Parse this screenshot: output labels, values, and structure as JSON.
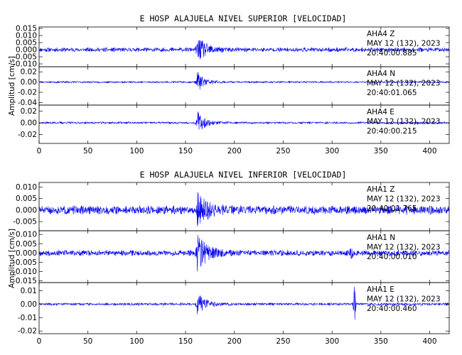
{
  "chart_data": [
    {
      "type": "line",
      "title": "E HOSP ALAJUELA NIVEL SUPERIOR [VELOCIDAD]",
      "ylabel": "Amplitud [cm/s]",
      "xlim": [
        0,
        420
      ],
      "xticks": [
        0,
        50,
        100,
        150,
        200,
        250,
        300,
        350,
        400
      ],
      "event_onset_x": 162,
      "panels": [
        {
          "channel": "AHA4   Z",
          "date": "MAY 12 (132), 2023",
          "time": "20:40:00.885",
          "ylim": [
            -0.012,
            0.016
          ],
          "yticks": [
            0.015,
            0.01,
            0.005,
            0.0,
            -0.005,
            -0.01
          ],
          "ytick_labels": [
            "0.015",
            "0.010",
            "0.005",
            "0.000",
            "-0.005",
            "-0.010"
          ],
          "noise": 0.0012,
          "peak": 0.009,
          "decay": 9,
          "spike_x": null,
          "spike_amp": 0,
          "seed": 11
        },
        {
          "channel": "AHA4   N",
          "date": "MAY 12 (132), 2023",
          "time": "20:40:01.065",
          "ylim": [
            -0.045,
            0.03
          ],
          "yticks": [
            0.02,
            0.0,
            -0.02,
            -0.04
          ],
          "ytick_labels": [
            "0.02",
            "0.00",
            "-0.02",
            "-0.04"
          ],
          "noise": 0.0015,
          "peak": 0.021,
          "decay": 7,
          "spike_x": null,
          "spike_amp": 0,
          "seed": 23
        },
        {
          "channel": "AHA4   E",
          "date": "MAY 12 (132), 2023",
          "time": "20:40:00.215",
          "ylim": [
            -0.035,
            0.03
          ],
          "yticks": [
            0.02,
            0.0,
            -0.02
          ],
          "ytick_labels": [
            "0.02",
            "0.00",
            "-0.02"
          ],
          "noise": 0.0015,
          "peak": 0.02,
          "decay": 7,
          "spike_x": null,
          "spike_amp": 0,
          "seed": 37
        }
      ]
    },
    {
      "type": "line",
      "title": "E HOSP ALAJUELA NIVEL INFERIOR [VELOCIDAD]",
      "ylabel": "Amplitud [cm/s]",
      "xlim": [
        0,
        420
      ],
      "xticks": [
        0,
        50,
        100,
        150,
        200,
        250,
        300,
        350,
        400
      ],
      "event_onset_x": 162,
      "panels": [
        {
          "channel": "AHA1   Z",
          "date": "MAY 12 (132), 2023",
          "time": "20:40:01.765",
          "ylim": [
            -0.009,
            0.012
          ],
          "yticks": [
            0.01,
            0.005,
            0.0,
            -0.005
          ],
          "ytick_labels": [
            "0.010",
            "0.005",
            "0.000",
            "-0.005"
          ],
          "noise": 0.0015,
          "peak": 0.0075,
          "decay": 10,
          "spike_x": null,
          "spike_amp": 0,
          "seed": 51
        },
        {
          "channel": "AHA1   N",
          "date": "MAY 12 (132), 2023",
          "time": "20:40:00.010",
          "ylim": [
            -0.016,
            0.012
          ],
          "yticks": [
            0.01,
            0.005,
            0.0,
            -0.005,
            -0.01,
            -0.015
          ],
          "ytick_labels": [
            "0.010",
            "0.005",
            "0.000",
            "-0.005",
            "-0.010",
            "-0.015"
          ],
          "noise": 0.0012,
          "peak": 0.011,
          "decay": 9,
          "spike_x": 320,
          "spike_amp": 0.004,
          "seed": 67
        },
        {
          "channel": "AHA1   E",
          "date": "MAY 12 (132), 2023",
          "time": "20:40:00.460",
          "ylim": [
            -0.022,
            0.016
          ],
          "yticks": [
            0.01,
            0.0,
            -0.01,
            -0.02
          ],
          "ytick_labels": [
            "0.01",
            "0.00",
            "-0.01",
            "-0.02"
          ],
          "noise": 0.0008,
          "peak": 0.008,
          "decay": 8,
          "spike_x": 323,
          "spike_amp": 0.019,
          "seed": 83
        }
      ]
    }
  ]
}
